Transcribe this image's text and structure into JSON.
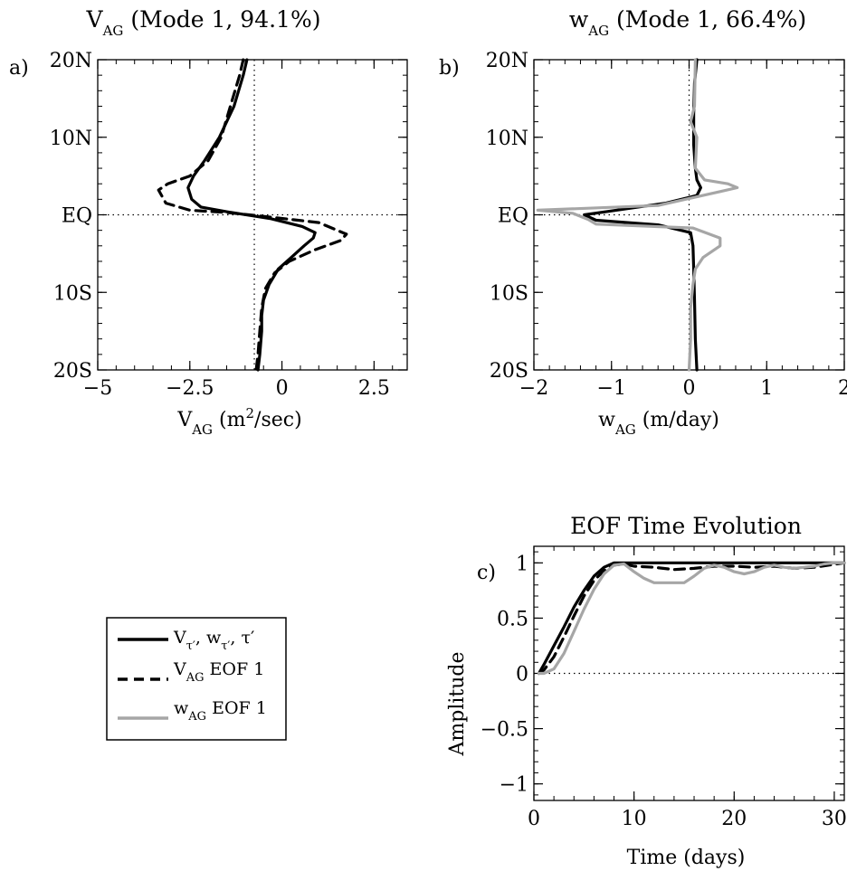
{
  "chart_data": [
    {
      "panel": "a",
      "type": "line",
      "title": {
        "main": "V",
        "sub": "AG",
        "rest": " (Mode 1, 94.1%)"
      },
      "xlabel": {
        "main": "V",
        "sub": "AG",
        "rest": " (m",
        "sup": "2",
        "rest2": "/sec)"
      },
      "xlim": [
        -5,
        3.4
      ],
      "xticks": [
        -5,
        -2.5,
        0,
        2.5
      ],
      "xticklabels": [
        "−5",
        "−2.5",
        "0",
        "2.5"
      ],
      "ylim": [
        -20,
        20
      ],
      "yticks": [
        20,
        10,
        0,
        -10,
        -20
      ],
      "yticklabels": [
        "20N",
        "10N",
        "EQ",
        "10S",
        "20S"
      ],
      "ref_x": -0.75,
      "ref_y": 0,
      "series": [
        {
          "style": "solid-black",
          "x": [
            -0.95,
            -1.05,
            -1.3,
            -1.7,
            -2.1,
            -2.4,
            -2.55,
            -2.45,
            -2.2,
            -1.5,
            -0.3,
            0.55,
            0.9,
            0.85,
            0.6,
            0.25,
            -0.1,
            -0.35,
            -0.5,
            -0.55,
            -0.55,
            -0.6,
            -0.65
          ],
          "y": [
            20,
            18,
            14,
            10,
            7,
            5,
            3.5,
            2,
            1,
            0.4,
            -0.5,
            -1.5,
            -2.3,
            -3,
            -4,
            -5.5,
            -7,
            -9,
            -11,
            -13,
            -15,
            -18,
            -20
          ]
        },
        {
          "style": "dashed-black",
          "x": [
            -1.05,
            -1.15,
            -1.4,
            -1.65,
            -2.0,
            -2.5,
            -3.1,
            -3.35,
            -3.15,
            -2.5,
            -1.5,
            -0.3,
            1.0,
            1.75,
            1.6,
            0.9,
            0.2,
            -0.2,
            -0.45,
            -0.55,
            -0.6,
            -0.65,
            -0.7
          ],
          "y": [
            20,
            18,
            14,
            10,
            7,
            5,
            4,
            3.2,
            1.5,
            0.6,
            0.3,
            -0.3,
            -1.0,
            -2.5,
            -3.3,
            -4.5,
            -6,
            -7.5,
            -9.5,
            -12,
            -15,
            -18,
            -20
          ]
        }
      ]
    },
    {
      "panel": "b",
      "type": "line",
      "title": {
        "main": "w",
        "sub": "AG",
        "rest": " (Mode 1, 66.4%)"
      },
      "xlabel": {
        "main": "w",
        "sub": "AG",
        "rest": " (m/day)"
      },
      "xlim": [
        -2,
        2
      ],
      "xticks": [
        -2,
        -1,
        0,
        1,
        2
      ],
      "xticklabels": [
        "−2",
        "−1",
        "0",
        "1",
        "2"
      ],
      "ylim": [
        -20,
        20
      ],
      "yticks": [
        20,
        10,
        0,
        -10,
        -20
      ],
      "yticklabels": [
        "20N",
        "10N",
        "EQ",
        "10S",
        "20S"
      ],
      "ref_x": 0,
      "ref_y": 0,
      "series": [
        {
          "style": "solid-black",
          "x": [
            0.1,
            0.07,
            0.06,
            0.06,
            0.08,
            0.1,
            0.15,
            0.1,
            -0.3,
            -1.0,
            -1.35,
            -1.2,
            -0.4,
            0.02,
            0.05,
            0.06,
            0.07,
            0.08,
            0.1
          ],
          "y": [
            20,
            17,
            13,
            9,
            6,
            4.5,
            3.5,
            2.5,
            1.5,
            0.5,
            0,
            -0.7,
            -1.3,
            -2.3,
            -4,
            -7,
            -11,
            -16,
            -20
          ]
        },
        {
          "style": "solid-gray",
          "x": [
            0.08,
            0.07,
            0.02,
            0.1,
            0.08,
            0.2,
            0.5,
            0.62,
            0.4,
            -0.4,
            -1.95,
            -1.5,
            -1.3,
            -1.2,
            0.05,
            0.4,
            0.4,
            0.18,
            0.08,
            0.05,
            0.02,
            0.02,
            0.0
          ],
          "y": [
            20,
            14,
            12,
            10,
            6,
            4.5,
            4,
            3.5,
            3,
            1.2,
            0.6,
            0.2,
            -0.6,
            -1.2,
            -1.7,
            -3,
            -4,
            -5.5,
            -7,
            -9,
            -12,
            -16,
            -20
          ]
        }
      ]
    },
    {
      "panel": "c",
      "type": "line",
      "title": {
        "main": "EOF Time Evolution"
      },
      "xlabel": {
        "main": "Time (days)"
      },
      "ylabel": "Amplitude",
      "xlim": [
        0,
        31
      ],
      "xticks": [
        0,
        10,
        20,
        30
      ],
      "xticklabels": [
        "0",
        "10",
        "20",
        "30"
      ],
      "ylim": [
        -1.15,
        1.15
      ],
      "yticks": [
        1,
        0.5,
        0,
        -0.5,
        -1
      ],
      "yticklabels": [
        "1",
        "0.5",
        "0",
        "−0.5",
        "−1"
      ],
      "ref_y": 0,
      "series": [
        {
          "style": "solid-black",
          "x": [
            0.5,
            1,
            2,
            3,
            4,
            5,
            6,
            7,
            8,
            8.5,
            9,
            10,
            15,
            20,
            25,
            31
          ],
          "y": [
            0,
            0.08,
            0.25,
            0.42,
            0.6,
            0.75,
            0.88,
            0.96,
            1.0,
            1.0,
            1.0,
            1.0,
            1.0,
            1.0,
            1.0,
            1.0
          ]
        },
        {
          "style": "dashed-black",
          "x": [
            0.5,
            1,
            2,
            3,
            4,
            5,
            6,
            7,
            8,
            9,
            10,
            12,
            14,
            16,
            18,
            20,
            22,
            24,
            26,
            28,
            31
          ],
          "y": [
            0,
            0.03,
            0.15,
            0.33,
            0.52,
            0.7,
            0.84,
            0.93,
            0.98,
            0.99,
            0.97,
            0.96,
            0.94,
            0.95,
            0.97,
            0.97,
            0.96,
            0.97,
            0.95,
            0.96,
            1.0
          ]
        },
        {
          "style": "solid-gray",
          "x": [
            0.5,
            1,
            2,
            3,
            4,
            5,
            6,
            7,
            8,
            9,
            10,
            11,
            12,
            13,
            14,
            15,
            16,
            17,
            18,
            19,
            20,
            21,
            22,
            23,
            24,
            25,
            26,
            27,
            28,
            29,
            30,
            31
          ],
          "y": [
            0,
            0.0,
            0.04,
            0.18,
            0.38,
            0.58,
            0.76,
            0.9,
            0.98,
            0.99,
            0.92,
            0.86,
            0.82,
            0.82,
            0.82,
            0.82,
            0.88,
            0.95,
            0.98,
            0.96,
            0.92,
            0.9,
            0.92,
            0.96,
            0.98,
            0.96,
            0.95,
            0.96,
            0.97,
            0.99,
            1.0,
            1.0
          ]
        }
      ]
    }
  ],
  "legend": {
    "entries": [
      {
        "style": "solid-black",
        "text": "Vτ′, wτ′, τ′"
      },
      {
        "style": "dashed-black",
        "main": "V",
        "sub": "AG",
        "rest": " EOF 1"
      },
      {
        "style": "solid-gray",
        "main": "w",
        "sub": "AG",
        "rest": " EOF 1"
      }
    ]
  }
}
